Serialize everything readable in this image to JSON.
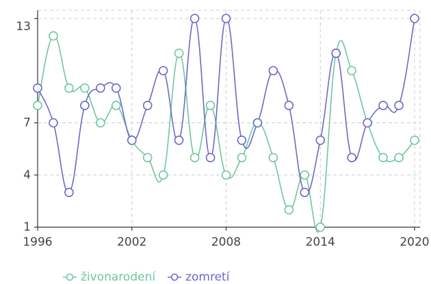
{
  "chart_data": {
    "type": "line",
    "x": [
      1996,
      1997,
      1998,
      1999,
      2000,
      2001,
      2002,
      2003,
      2004,
      2005,
      2006,
      2007,
      2008,
      2009,
      2010,
      2011,
      2012,
      2013,
      2014,
      2015,
      2016,
      2017,
      2018,
      2019,
      2020
    ],
    "series": [
      {
        "name": "živonarodení",
        "color": "#6fc79b",
        "values": [
          8,
          12,
          9,
          9,
          7,
          8,
          6,
          5,
          4,
          11,
          5,
          8,
          4,
          5,
          7,
          5,
          2,
          4,
          1,
          11,
          10,
          7,
          5,
          5,
          6
        ]
      },
      {
        "name": "zomretí",
        "color": "#6c68c9",
        "values": [
          9,
          7,
          3,
          8,
          9,
          9,
          6,
          8,
          10,
          6,
          13,
          5,
          13,
          6,
          7,
          10,
          8,
          3,
          6,
          11,
          5,
          7,
          8,
          8,
          13
        ]
      }
    ],
    "xlim": [
      1996,
      2020
    ],
    "xticks": [
      1996,
      2002,
      2008,
      2014,
      2020
    ],
    "ylim": [
      1,
      13
    ],
    "yticks": [
      1,
      4,
      7,
      13
    ],
    "grid": true,
    "legend": "bottom"
  }
}
